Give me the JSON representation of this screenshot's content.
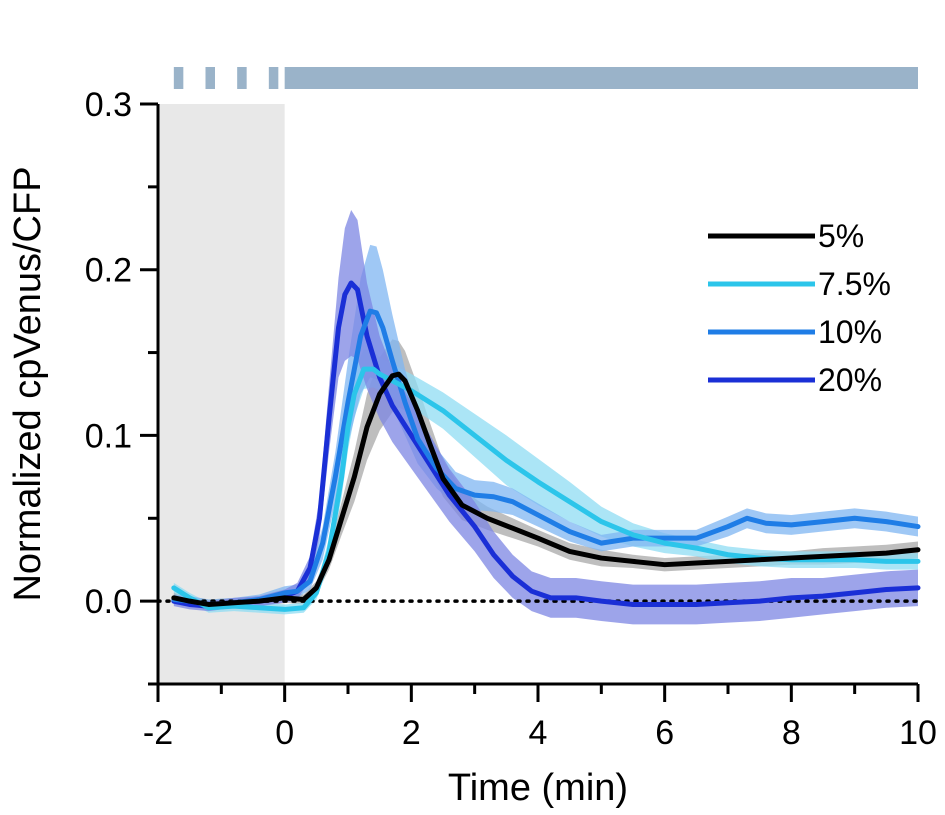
{
  "chart_data": {
    "type": "line",
    "xlabel": "Time (min)",
    "ylabel": "Normalized cpVenus/CFP",
    "xlim": [
      -2,
      10
    ],
    "ylim": [
      -0.05,
      0.3
    ],
    "x_ticks": [
      -2,
      0,
      2,
      4,
      6,
      8,
      10
    ],
    "x_tick_labels": [
      "-2",
      "0",
      "2",
      "4",
      "6",
      "8",
      "10"
    ],
    "y_ticks": [
      0.0,
      0.1,
      0.2,
      0.3
    ],
    "y_tick_labels": [
      "0.0",
      "0.1",
      "0.2",
      "0.3"
    ],
    "legend_position": "top-right",
    "shaded_region": {
      "x": [
        -2,
        0
      ],
      "color": "#e8e8e8"
    },
    "baseline": {
      "y": 0,
      "style": "dotted"
    },
    "stimulus_bar": {
      "color": "#9ab3c9",
      "pulses": [
        [
          -1.75,
          -1.6
        ],
        [
          -1.25,
          -1.1
        ],
        [
          -0.75,
          -0.6
        ],
        [
          -0.25,
          -0.1
        ]
      ],
      "continuous": [
        0.0,
        10.0
      ]
    },
    "series": [
      {
        "name": "5%",
        "color": "#000000",
        "band_color": "#a8a8a8",
        "x": [
          -1.75,
          -1.5,
          -1.2,
          -0.8,
          -0.4,
          0,
          0.3,
          0.5,
          0.7,
          0.9,
          1.1,
          1.3,
          1.5,
          1.7,
          1.8,
          1.9,
          2.1,
          2.3,
          2.5,
          2.8,
          3.2,
          3.6,
          4,
          4.5,
          5,
          5.5,
          6,
          6.5,
          7,
          7.5,
          8,
          8.5,
          9,
          9.5,
          10
        ],
        "y": [
          0.002,
          0.0,
          -0.002,
          -0.001,
          0.0,
          0.002,
          0.001,
          0.008,
          0.025,
          0.05,
          0.075,
          0.105,
          0.125,
          0.136,
          0.137,
          0.133,
          0.115,
          0.094,
          0.074,
          0.058,
          0.05,
          0.044,
          0.038,
          0.03,
          0.026,
          0.024,
          0.022,
          0.023,
          0.024,
          0.025,
          0.026,
          0.027,
          0.028,
          0.029,
          0.031
        ],
        "err": [
          0.003,
          0.003,
          0.003,
          0.003,
          0.003,
          0.003,
          0.003,
          0.004,
          0.006,
          0.01,
          0.015,
          0.02,
          0.022,
          0.022,
          0.02,
          0.018,
          0.015,
          0.013,
          0.011,
          0.009,
          0.007,
          0.006,
          0.005,
          0.005,
          0.005,
          0.004,
          0.004,
          0.004,
          0.004,
          0.004,
          0.004,
          0.005,
          0.005,
          0.005,
          0.005
        ]
      },
      {
        "name": "7.5%",
        "color": "#2cc5ea",
        "band_color": "#8fdcf3",
        "x": [
          -1.75,
          -1.5,
          -1.2,
          -0.8,
          -0.4,
          0,
          0.3,
          0.5,
          0.7,
          0.9,
          1.0,
          1.1,
          1.25,
          1.4,
          1.5,
          1.7,
          2.0,
          2.5,
          3.0,
          3.5,
          4.0,
          4.5,
          5.0,
          5.5,
          6.0,
          6.5,
          7.0,
          7.5,
          8.0,
          8.5,
          9.0,
          9.5,
          10
        ],
        "y": [
          0.008,
          0.002,
          -0.004,
          -0.003,
          -0.004,
          -0.005,
          -0.004,
          0.005,
          0.03,
          0.075,
          0.105,
          0.125,
          0.14,
          0.14,
          0.137,
          0.133,
          0.127,
          0.115,
          0.1,
          0.085,
          0.072,
          0.06,
          0.048,
          0.04,
          0.035,
          0.032,
          0.028,
          0.026,
          0.025,
          0.025,
          0.025,
          0.024,
          0.024
        ],
        "err": [
          0.003,
          0.003,
          0.003,
          0.003,
          0.003,
          0.003,
          0.003,
          0.004,
          0.008,
          0.012,
          0.014,
          0.014,
          0.012,
          0.011,
          0.01,
          0.01,
          0.01,
          0.011,
          0.013,
          0.015,
          0.014,
          0.012,
          0.009,
          0.007,
          0.006,
          0.005,
          0.005,
          0.005,
          0.005,
          0.005,
          0.005,
          0.005,
          0.005
        ]
      },
      {
        "name": "10%",
        "color": "#1f7de6",
        "band_color": "#7fb6f2",
        "x": [
          -1.75,
          -1.5,
          -1.2,
          -0.8,
          -0.4,
          0,
          0.2,
          0.4,
          0.6,
          0.8,
          1.0,
          1.2,
          1.35,
          1.45,
          1.55,
          1.7,
          1.9,
          2.1,
          2.4,
          2.7,
          3.0,
          3.3,
          3.6,
          4.0,
          4.5,
          5.0,
          5.5,
          6.0,
          6.5,
          7.0,
          7.3,
          7.6,
          8.0,
          8.5,
          9.0,
          9.5,
          10
        ],
        "y": [
          0.001,
          0.0,
          -0.002,
          -0.001,
          0.001,
          0.005,
          0.006,
          0.012,
          0.035,
          0.075,
          0.12,
          0.16,
          0.175,
          0.174,
          0.165,
          0.145,
          0.12,
          0.098,
          0.08,
          0.068,
          0.064,
          0.063,
          0.06,
          0.052,
          0.042,
          0.035,
          0.038,
          0.038,
          0.038,
          0.045,
          0.05,
          0.047,
          0.046,
          0.048,
          0.05,
          0.048,
          0.045
        ],
        "err": [
          0.003,
          0.003,
          0.003,
          0.003,
          0.003,
          0.004,
          0.004,
          0.005,
          0.01,
          0.015,
          0.025,
          0.035,
          0.04,
          0.04,
          0.035,
          0.028,
          0.02,
          0.015,
          0.012,
          0.01,
          0.009,
          0.009,
          0.008,
          0.007,
          0.006,
          0.005,
          0.005,
          0.005,
          0.005,
          0.006,
          0.006,
          0.006,
          0.006,
          0.006,
          0.006,
          0.006,
          0.006
        ]
      },
      {
        "name": "20%",
        "color": "#1a2fd6",
        "band_color": "#7c86e3",
        "x": [
          -1.75,
          -1.5,
          -1.2,
          -0.8,
          -0.4,
          0,
          0.2,
          0.4,
          0.55,
          0.7,
          0.85,
          0.95,
          1.05,
          1.15,
          1.3,
          1.5,
          1.7,
          2.0,
          2.3,
          2.6,
          3.0,
          3.3,
          3.6,
          3.9,
          4.2,
          4.6,
          5.0,
          5.5,
          6.0,
          6.5,
          7.0,
          7.5,
          8.0,
          8.5,
          9.0,
          9.5,
          10
        ],
        "y": [
          0.0,
          -0.002,
          -0.003,
          -0.001,
          0.0,
          0.003,
          0.006,
          0.02,
          0.05,
          0.11,
          0.165,
          0.185,
          0.192,
          0.188,
          0.16,
          0.135,
          0.118,
          0.1,
          0.082,
          0.064,
          0.045,
          0.028,
          0.015,
          0.006,
          0.002,
          0.002,
          0.0,
          -0.002,
          -0.002,
          -0.002,
          -0.001,
          0.0,
          0.002,
          0.003,
          0.005,
          0.007,
          0.008
        ],
        "err": [
          0.003,
          0.003,
          0.003,
          0.003,
          0.003,
          0.004,
          0.005,
          0.007,
          0.012,
          0.02,
          0.03,
          0.04,
          0.044,
          0.042,
          0.032,
          0.025,
          0.022,
          0.02,
          0.018,
          0.016,
          0.015,
          0.014,
          0.013,
          0.012,
          0.012,
          0.012,
          0.012,
          0.012,
          0.012,
          0.012,
          0.012,
          0.012,
          0.012,
          0.011,
          0.011,
          0.011,
          0.011
        ]
      }
    ]
  }
}
